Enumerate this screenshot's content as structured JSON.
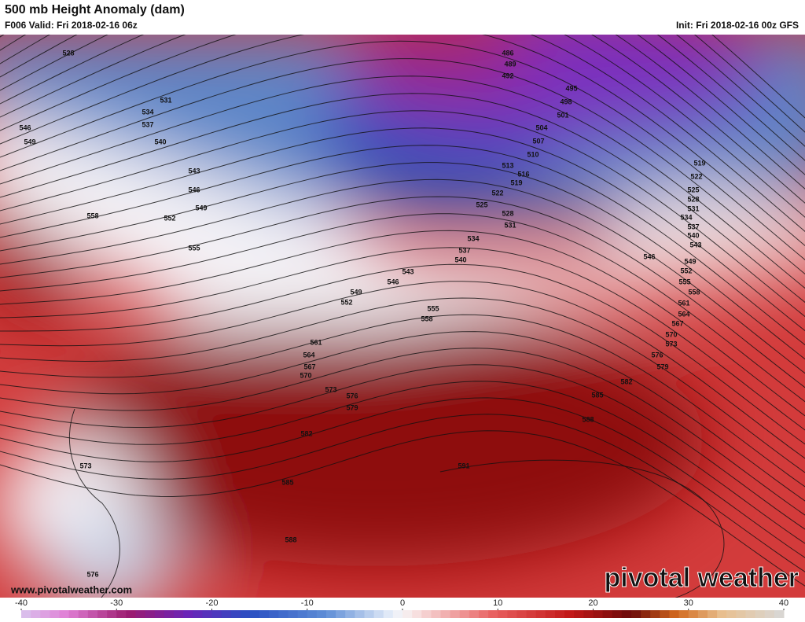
{
  "header": {
    "title": "500 mb Height Anomaly (dam)",
    "valid": "F006 Valid: Fri 2018-02-16 06z",
    "init": "Init: Fri 2018-02-16 00z GFS"
  },
  "contour_labels": [
    528,
    531,
    534,
    537,
    540,
    543,
    546,
    549,
    552,
    555,
    558,
    546,
    549,
    486,
    489,
    492,
    495,
    498,
    501,
    504,
    507,
    510,
    513,
    516,
    519,
    522,
    525,
    528,
    531,
    534,
    537,
    540,
    543,
    546,
    549,
    552,
    555,
    558,
    561,
    564,
    567,
    570,
    573,
    576,
    579,
    582,
    585,
    588,
    591,
    585,
    588,
    582,
    579,
    576,
    573,
    570,
    567,
    564,
    561,
    558,
    555,
    552,
    549,
    546,
    543,
    540,
    537,
    534,
    531,
    528,
    525,
    522,
    519,
    573,
    576
  ],
  "footer": {
    "website": "www.pivotalweather.com",
    "logo": "pivotal weather"
  },
  "colorbar": {
    "lim": [
      -40,
      40
    ],
    "ticks": [
      -40,
      -30,
      -20,
      -10,
      0,
      10,
      20,
      30,
      40
    ]
  }
}
